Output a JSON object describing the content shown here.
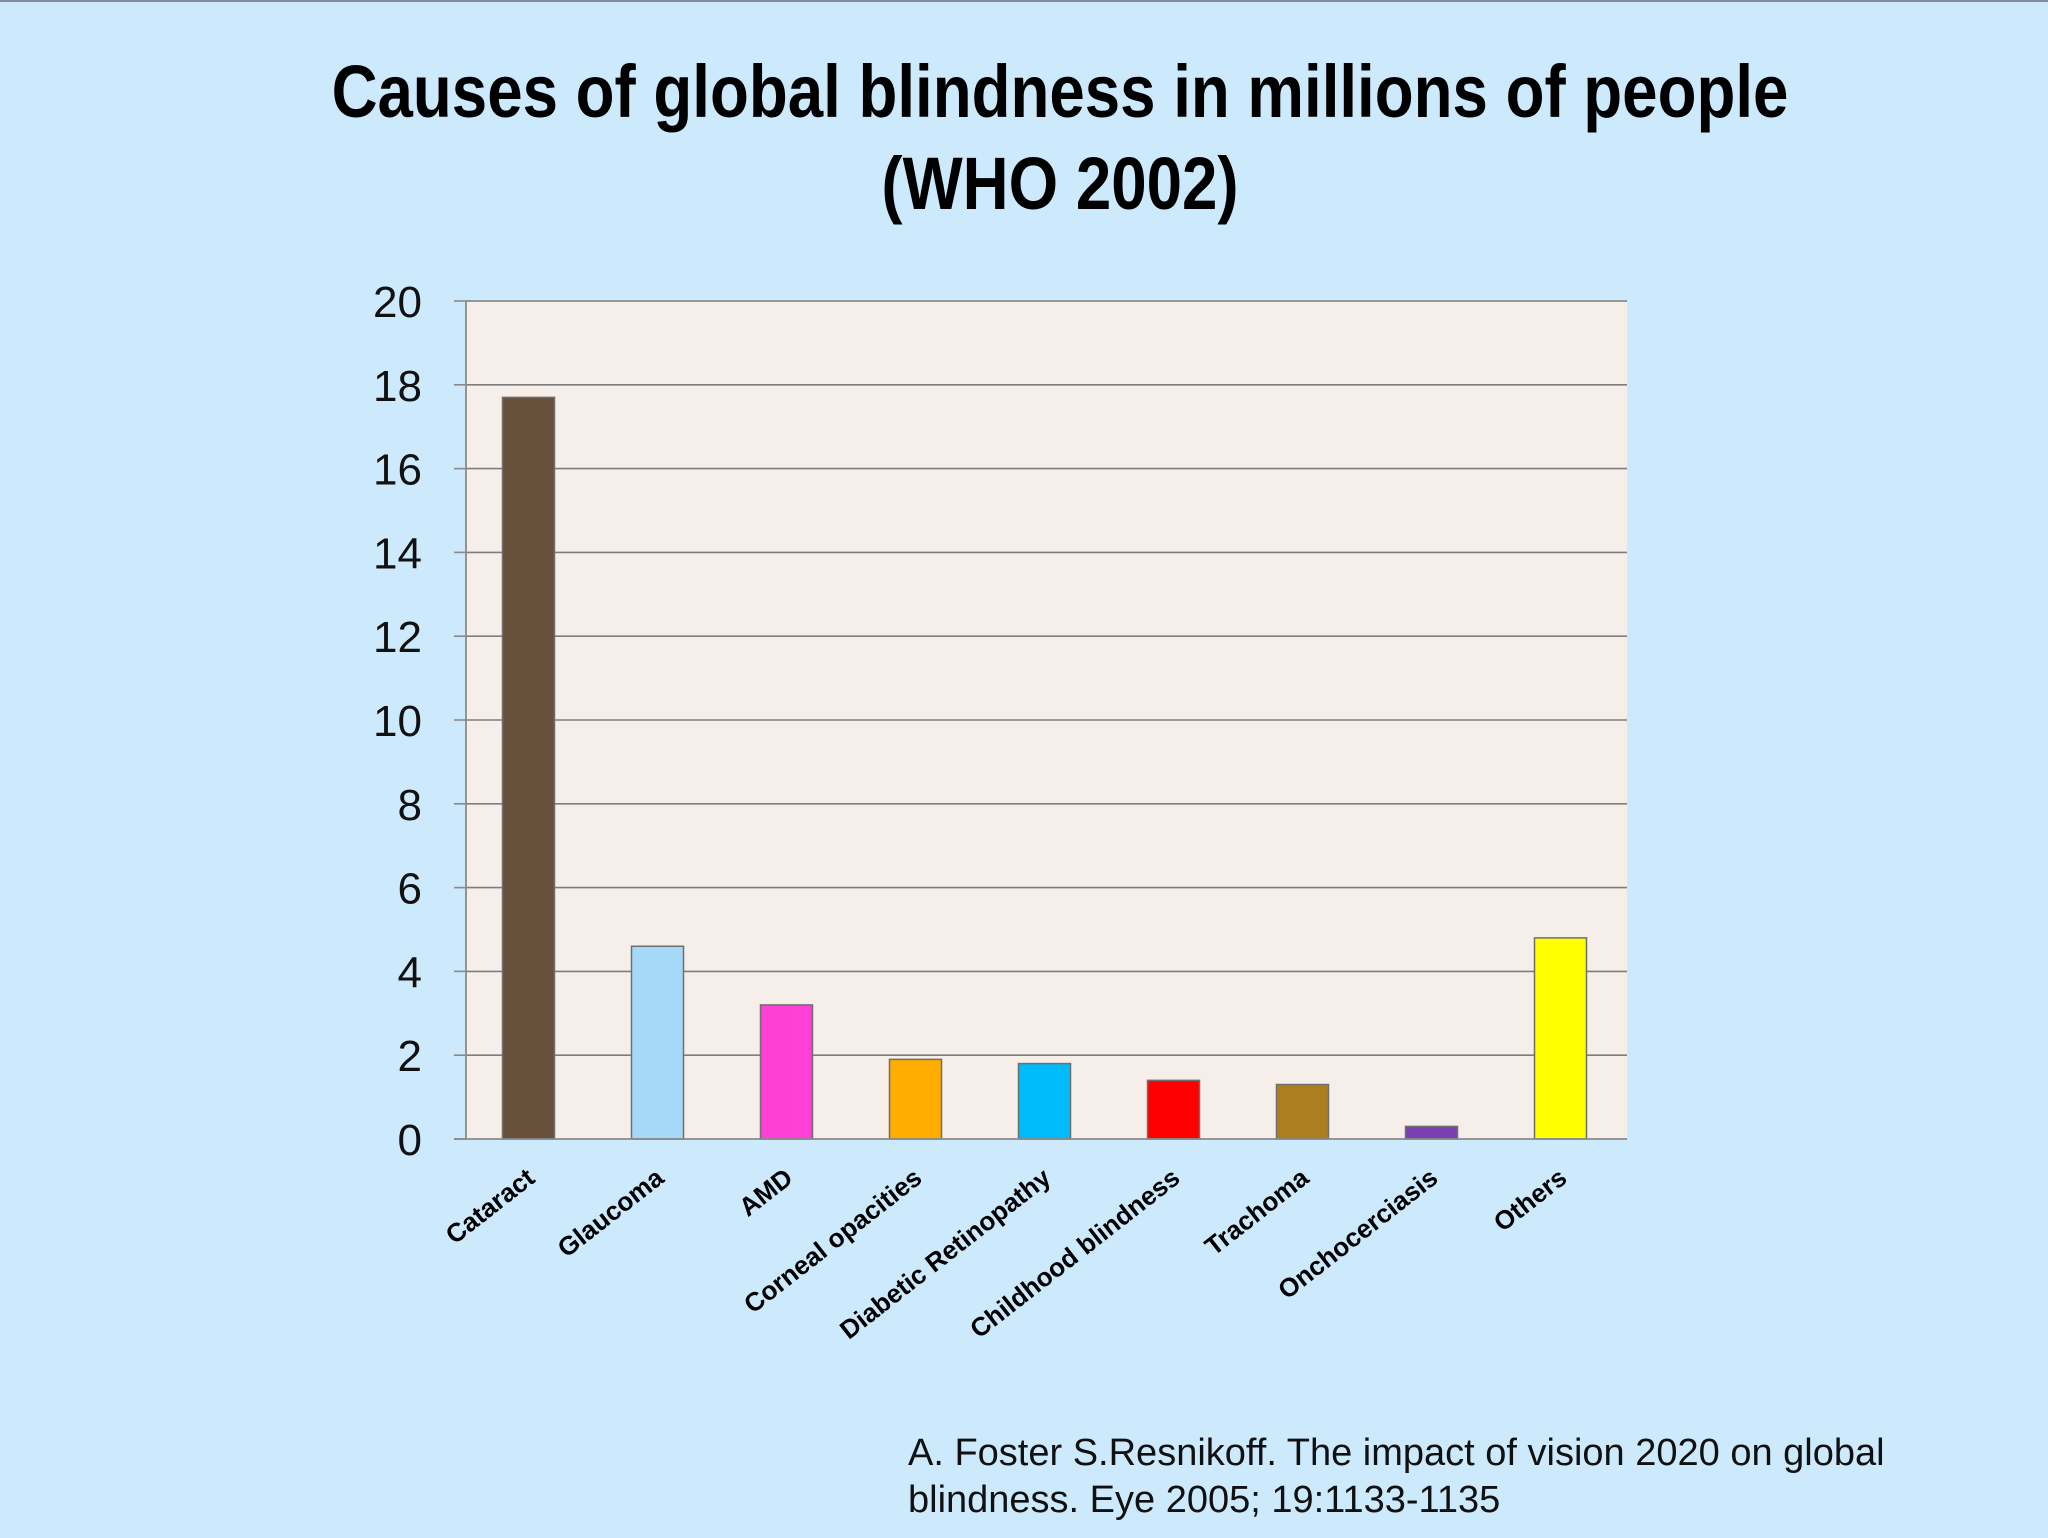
{
  "slide": {
    "title_line1": "Causes of global blindness in millions of people",
    "title_line2": "(WHO 2002)",
    "citation_line1": "A. Foster S.Resnikoff. The impact of vision 2020 on global",
    "citation_line2": "blindness. Eye 2005; 19:1133-1135"
  },
  "chart_data": {
    "type": "bar",
    "title": "Causes of global blindness in millions of people (WHO 2002)",
    "xlabel": "",
    "ylabel": "",
    "ylim": [
      0,
      20
    ],
    "yticks": [
      0,
      2,
      4,
      6,
      8,
      10,
      12,
      14,
      16,
      18,
      20
    ],
    "grid": true,
    "legend": "none",
    "categories": [
      "Cataract",
      "Glaucoma",
      "AMD",
      "Corneal opacities",
      "Diabetic Retinopathy",
      "Childhood blindness",
      "Trachoma",
      "Onchocerciasis",
      "Others"
    ],
    "values": [
      17.7,
      4.6,
      3.2,
      1.9,
      1.8,
      1.4,
      1.3,
      0.3,
      4.8
    ],
    "colors": [
      "#67513a",
      "#a6d8f7",
      "#ff3fd6",
      "#ffad00",
      "#00bbf9",
      "#ff0000",
      "#ad7e1f",
      "#7a3fb1",
      "#ffff00"
    ],
    "plot_background": "#f6eee9",
    "gridline_color": "#7d7d7d"
  }
}
